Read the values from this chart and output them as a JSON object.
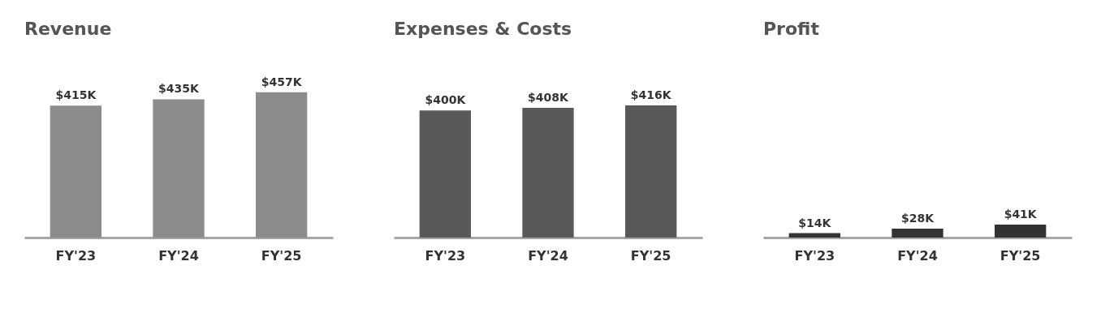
{
  "chart_data": [
    {
      "type": "bar",
      "title": "Revenue",
      "categories": [
        "FY'23",
        "FY'24",
        "FY'25"
      ],
      "values": [
        415,
        435,
        457
      ],
      "value_labels": [
        "$415K",
        "$435K",
        "$457K"
      ],
      "color": "#8c8c8c"
    },
    {
      "type": "bar",
      "title": "Expenses & Costs",
      "categories": [
        "FY'23",
        "FY'24",
        "FY'25"
      ],
      "values": [
        400,
        408,
        416
      ],
      "value_labels": [
        "$400K",
        "$408K",
        "$416K"
      ],
      "color": "#595959"
    },
    {
      "type": "bar",
      "title": "Profit",
      "categories": [
        "FY'23",
        "FY'24",
        "FY'25"
      ],
      "values": [
        14,
        28,
        41
      ],
      "value_labels": [
        "$14K",
        "$28K",
        "$41K"
      ],
      "color": "#333333"
    }
  ]
}
